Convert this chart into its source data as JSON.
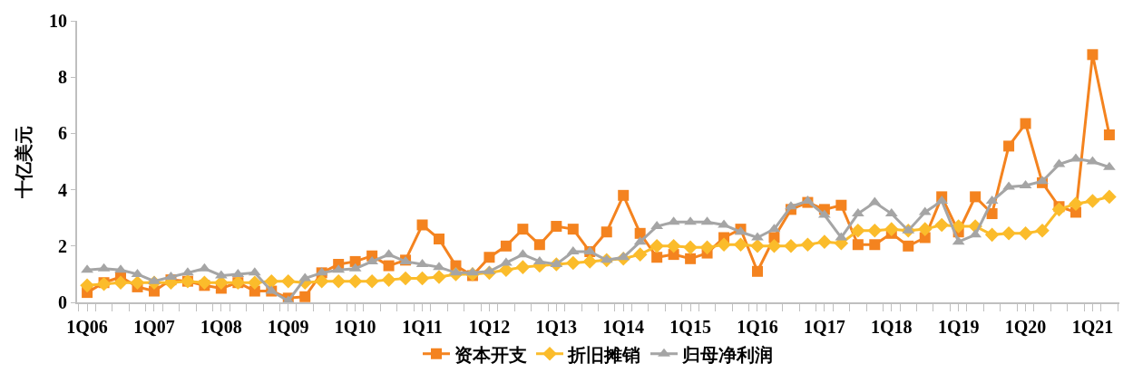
{
  "chart_data": {
    "type": "line",
    "ylabel": "十亿美元",
    "categories": [
      "1Q06",
      null,
      null,
      null,
      "1Q07",
      null,
      null,
      null,
      "1Q08",
      null,
      null,
      null,
      "1Q09",
      null,
      null,
      null,
      "1Q10",
      null,
      null,
      null,
      "1Q11",
      null,
      null,
      null,
      "1Q12",
      null,
      null,
      null,
      "1Q13",
      null,
      null,
      null,
      "1Q14",
      null,
      null,
      null,
      "1Q15",
      null,
      null,
      null,
      "1Q16",
      null,
      null,
      null,
      "1Q17",
      null,
      null,
      null,
      "1Q18",
      null,
      null,
      null,
      "1Q19",
      null,
      null,
      null,
      "1Q20",
      null,
      null,
      null,
      "1Q21",
      null
    ],
    "series": [
      {
        "name": "资本开支",
        "color": "#f4831f",
        "marker": "square",
        "values": [
          0.35,
          0.7,
          0.9,
          0.55,
          0.4,
          0.8,
          0.75,
          0.6,
          0.5,
          0.7,
          0.4,
          0.4,
          0.15,
          0.2,
          1.05,
          1.35,
          1.45,
          1.65,
          1.3,
          1.5,
          2.75,
          2.25,
          1.3,
          0.95,
          1.6,
          2.0,
          2.6,
          2.05,
          2.7,
          2.6,
          1.8,
          2.5,
          3.8,
          2.45,
          1.6,
          1.7,
          1.55,
          1.75,
          2.3,
          2.6,
          1.1,
          2.3,
          3.3,
          3.55,
          3.3,
          3.45,
          2.05,
          2.05,
          2.45,
          2.0,
          2.3,
          3.75,
          2.5,
          3.75,
          3.15,
          5.55,
          6.35,
          4.25,
          3.4,
          3.2,
          8.8,
          5.95
        ]
      },
      {
        "name": "折旧摊销",
        "color": "#fbbc2b",
        "marker": "diamond",
        "values": [
          0.6,
          0.65,
          0.7,
          0.7,
          0.7,
          0.7,
          0.75,
          0.7,
          0.7,
          0.7,
          0.7,
          0.75,
          0.75,
          0.7,
          0.75,
          0.75,
          0.75,
          0.75,
          0.8,
          0.85,
          0.85,
          0.9,
          1.0,
          1.0,
          1.05,
          1.15,
          1.25,
          1.3,
          1.35,
          1.4,
          1.45,
          1.5,
          1.55,
          1.7,
          2.0,
          2.0,
          1.95,
          1.95,
          2.05,
          2.05,
          2.0,
          2.0,
          2.0,
          2.05,
          2.15,
          2.1,
          2.55,
          2.55,
          2.6,
          2.55,
          2.6,
          2.75,
          2.7,
          2.7,
          2.4,
          2.45,
          2.45,
          2.55,
          3.3,
          3.5,
          3.6,
          3.75
        ]
      },
      {
        "name": "归母净利润",
        "color": "#a5a5a5",
        "marker": "triangle",
        "values": [
          1.15,
          1.2,
          1.15,
          1.0,
          0.75,
          0.9,
          1.05,
          1.2,
          0.95,
          1.0,
          1.05,
          0.4,
          0.05,
          0.85,
          1.05,
          1.15,
          1.2,
          1.45,
          1.7,
          1.45,
          1.35,
          1.25,
          1.05,
          1.05,
          1.1,
          1.4,
          1.7,
          1.45,
          1.35,
          1.8,
          1.8,
          1.5,
          1.6,
          2.15,
          2.7,
          2.85,
          2.85,
          2.85,
          2.75,
          2.5,
          2.3,
          2.6,
          3.4,
          3.6,
          3.1,
          2.3,
          3.15,
          3.55,
          3.15,
          2.55,
          3.2,
          3.6,
          2.15,
          2.4,
          3.6,
          4.1,
          4.15,
          4.3,
          4.9,
          5.1,
          5.0,
          4.8
        ]
      }
    ],
    "ylim": [
      0,
      10
    ],
    "yticks": [
      0,
      2,
      4,
      6,
      8,
      10
    ],
    "legend": "bottom",
    "line_style": "solid"
  }
}
